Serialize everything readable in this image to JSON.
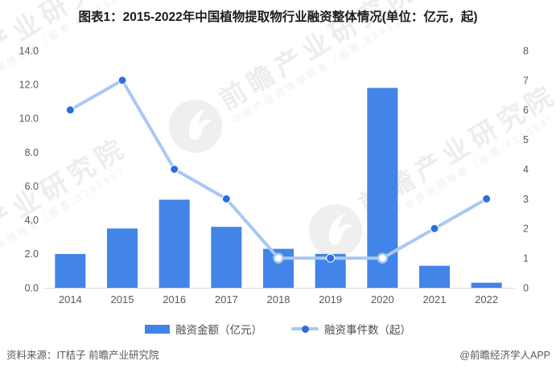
{
  "title": "图表1：2015-2022年中国植物提取物行业融资整体情况(单位：亿元，起)",
  "watermark": {
    "brand": "前瞻产业研究院",
    "subtitle": "中国产业咨询领导者（股票:839599）"
  },
  "chart_data": {
    "type": "bar+line",
    "title": "图表1：2015-2022年中国植物提取物行业融资整体情况(单位：亿元，起)",
    "categories": [
      "2014",
      "2015",
      "2016",
      "2017",
      "2018",
      "2019",
      "2020",
      "2021",
      "2022"
    ],
    "series": [
      {
        "name": "融资金额（亿元）",
        "type": "bar",
        "axis": "left",
        "values": [
          2.0,
          3.5,
          5.2,
          3.6,
          2.3,
          2.0,
          11.8,
          1.3,
          0.3
        ],
        "color": "#4284e7"
      },
      {
        "name": "融资事件数（起）",
        "type": "line",
        "axis": "right",
        "values": [
          6,
          7,
          4,
          3,
          1,
          1,
          1,
          2,
          3
        ],
        "color": "#a8c8f3",
        "marker_color": "#2d6edf",
        "hollow_markers": [
          "2018",
          "2020"
        ]
      }
    ],
    "left_axis": {
      "min": 0,
      "max": 14,
      "ticks": [
        "0.0",
        "2.0",
        "4.0",
        "6.0",
        "8.0",
        "10.0",
        "12.0",
        "14.0"
      ]
    },
    "right_axis": {
      "min": 0,
      "max": 8,
      "ticks": [
        "0",
        "1",
        "2",
        "3",
        "4",
        "5",
        "6",
        "7",
        "8"
      ]
    },
    "grid": false,
    "legend_position": "bottom"
  },
  "legend": {
    "items": [
      {
        "label": "融资金额（亿元）"
      },
      {
        "label": "融资事件数（起）"
      }
    ]
  },
  "footer": {
    "source": "资料来源：IT桔子 前瞻产业研究院",
    "credit": "@前瞻经济学人APP"
  }
}
